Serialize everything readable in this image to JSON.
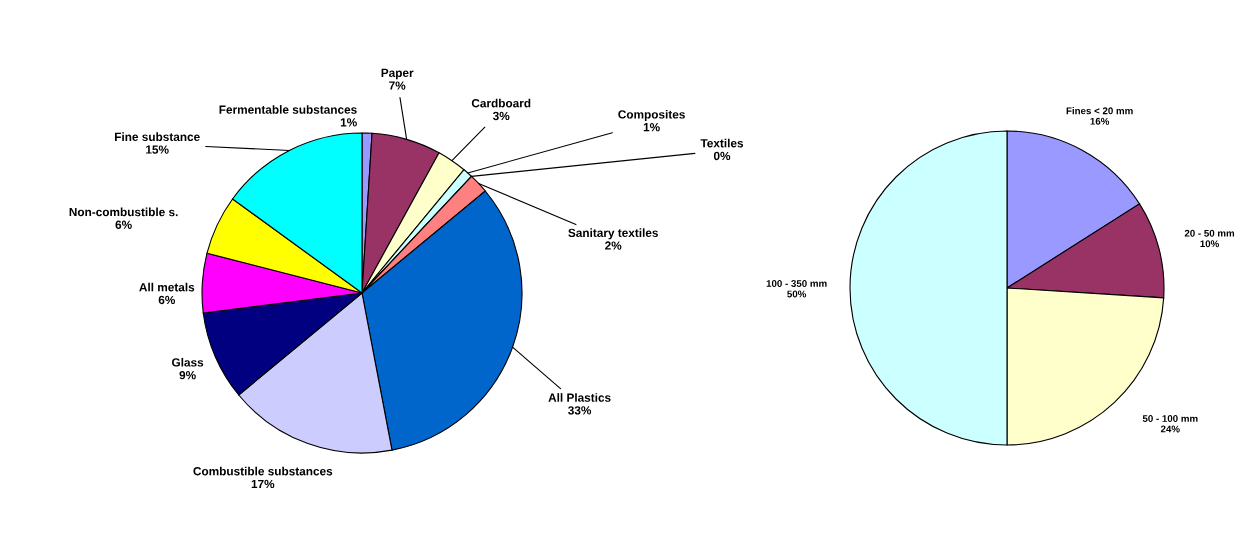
{
  "chart_data": [
    {
      "type": "pie",
      "categories": [
        "Fermentable substances",
        "Paper",
        "Cardboard",
        "Composites",
        "Textiles",
        "Sanitary textiles",
        "All Plastics",
        "Combustible substances",
        "Glass",
        "All metals",
        "Non-combustible s.",
        "Fine substance"
      ],
      "values": [
        1,
        7,
        3,
        1,
        0,
        2,
        33,
        17,
        9,
        6,
        6,
        15
      ],
      "value_labels": [
        "1%",
        "7%",
        "3%",
        "1%",
        "0%",
        "2%",
        "33%",
        "17%",
        "9%",
        "6%",
        "6%",
        "15%"
      ],
      "colors": [
        "#9999ff",
        "#993366",
        "#ffffcc",
        "#ccffff",
        "#660066",
        "#ff8080",
        "#0066cc",
        "#ccccff",
        "#000080",
        "#ff00ff",
        "#ffff00",
        "#00ffff"
      ]
    },
    {
      "type": "pie",
      "categories": [
        "Fines < 20 mm",
        "20 - 50 mm",
        "50 - 100 mm",
        "100 - 350 mm"
      ],
      "values": [
        16,
        10,
        24,
        50
      ],
      "value_labels": [
        "16%",
        "10%",
        "24%",
        "50%"
      ],
      "colors": [
        "#9999ff",
        "#993366",
        "#ffffcc",
        "#ccffff"
      ]
    }
  ]
}
